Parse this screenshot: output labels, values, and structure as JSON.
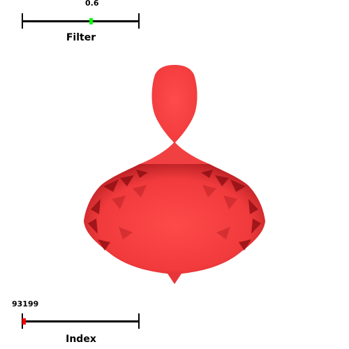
{
  "filter_slider": {
    "value": "0.6",
    "label": "Filter",
    "handle_color": "#00ff00",
    "level": 0.6
  },
  "index_slider": {
    "value": "93199",
    "label": "Index",
    "handle_color": "#ff0000",
    "level": 0.0
  },
  "surface": {
    "shape": "spinning-top isosurface",
    "color": "#ff3a3a",
    "shadow_color": "#8a0c10"
  }
}
